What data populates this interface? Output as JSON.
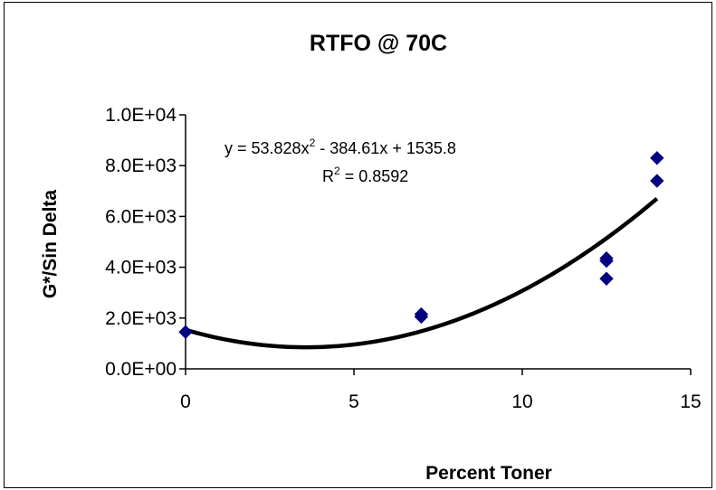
{
  "chart_data": {
    "type": "scatter",
    "title": "RTFO @ 70C",
    "xlabel": "Percent Toner",
    "ylabel": "G*/Sin Delta",
    "xlim": [
      0,
      15
    ],
    "ylim": [
      0,
      10000
    ],
    "x_ticks": [
      0,
      5,
      10,
      15
    ],
    "x_tick_labels": [
      "0",
      "5",
      "10",
      "15"
    ],
    "y_ticks": [
      0,
      2000,
      4000,
      6000,
      8000,
      10000
    ],
    "y_tick_labels": [
      "0.0E+00",
      "2.0E+03",
      "4.0E+03",
      "6.0E+03",
      "8.0E+03",
      "1.0E+04"
    ],
    "grid": false,
    "legend": "none",
    "series": [
      {
        "marker": "diamond",
        "color": "#000080",
        "points": [
          {
            "x": 0,
            "y": 1450
          },
          {
            "x": 7,
            "y": 2050
          },
          {
            "x": 7,
            "y": 2150
          },
          {
            "x": 12.5,
            "y": 3550
          },
          {
            "x": 12.5,
            "y": 4250
          },
          {
            "x": 12.5,
            "y": 4350
          },
          {
            "x": 14,
            "y": 7400
          },
          {
            "x": 14,
            "y": 8300
          }
        ]
      }
    ],
    "trendline": {
      "type": "polynomial",
      "order": 2,
      "coefficients": [
        53.828,
        -384.61,
        1535.8
      ],
      "x_range": [
        0,
        14
      ],
      "color": "#000000",
      "equation_text": {
        "prefix": "y = 53.828x",
        "sup": "2",
        "suffix": " - 384.61x + 1535.8"
      },
      "r2_text": {
        "prefix": "R",
        "sup": "2",
        "suffix": " = 0.8592"
      }
    }
  }
}
